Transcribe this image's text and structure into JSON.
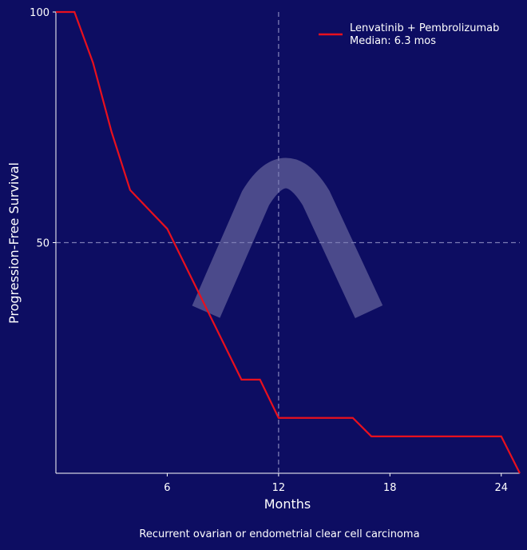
{
  "chart_data": {
    "type": "line",
    "title": "",
    "xlabel": "Months",
    "ylabel": "Progression-Free Survival",
    "caption": "Recurrent ovarian or endometrial clear cell carcinoma",
    "xlim": [
      0,
      25
    ],
    "ylim": [
      0,
      100
    ],
    "xticks": [
      6,
      12,
      18,
      24
    ],
    "yticks": [
      50,
      100
    ],
    "grid": false,
    "reference_lines": {
      "x": 12,
      "y": 50
    },
    "legend_position": "top-right",
    "series": [
      {
        "name": "Lenvatinib + Pembrolizumab",
        "legend_sub": "Median: 6.3 mos",
        "color": "#e8101e",
        "x": [
          0,
          1,
          2,
          3,
          4,
          5,
          6,
          10,
          11,
          12,
          16,
          17,
          24,
          25
        ],
        "y": [
          100,
          100,
          89,
          74,
          61.4,
          57.2,
          53,
          20.3,
          20.3,
          12,
          12,
          8,
          8,
          0
        ]
      }
    ],
    "colors": {
      "background": "#0d0d62",
      "watermark": "#5b5a96",
      "refline": "#7c7cb4"
    }
  }
}
